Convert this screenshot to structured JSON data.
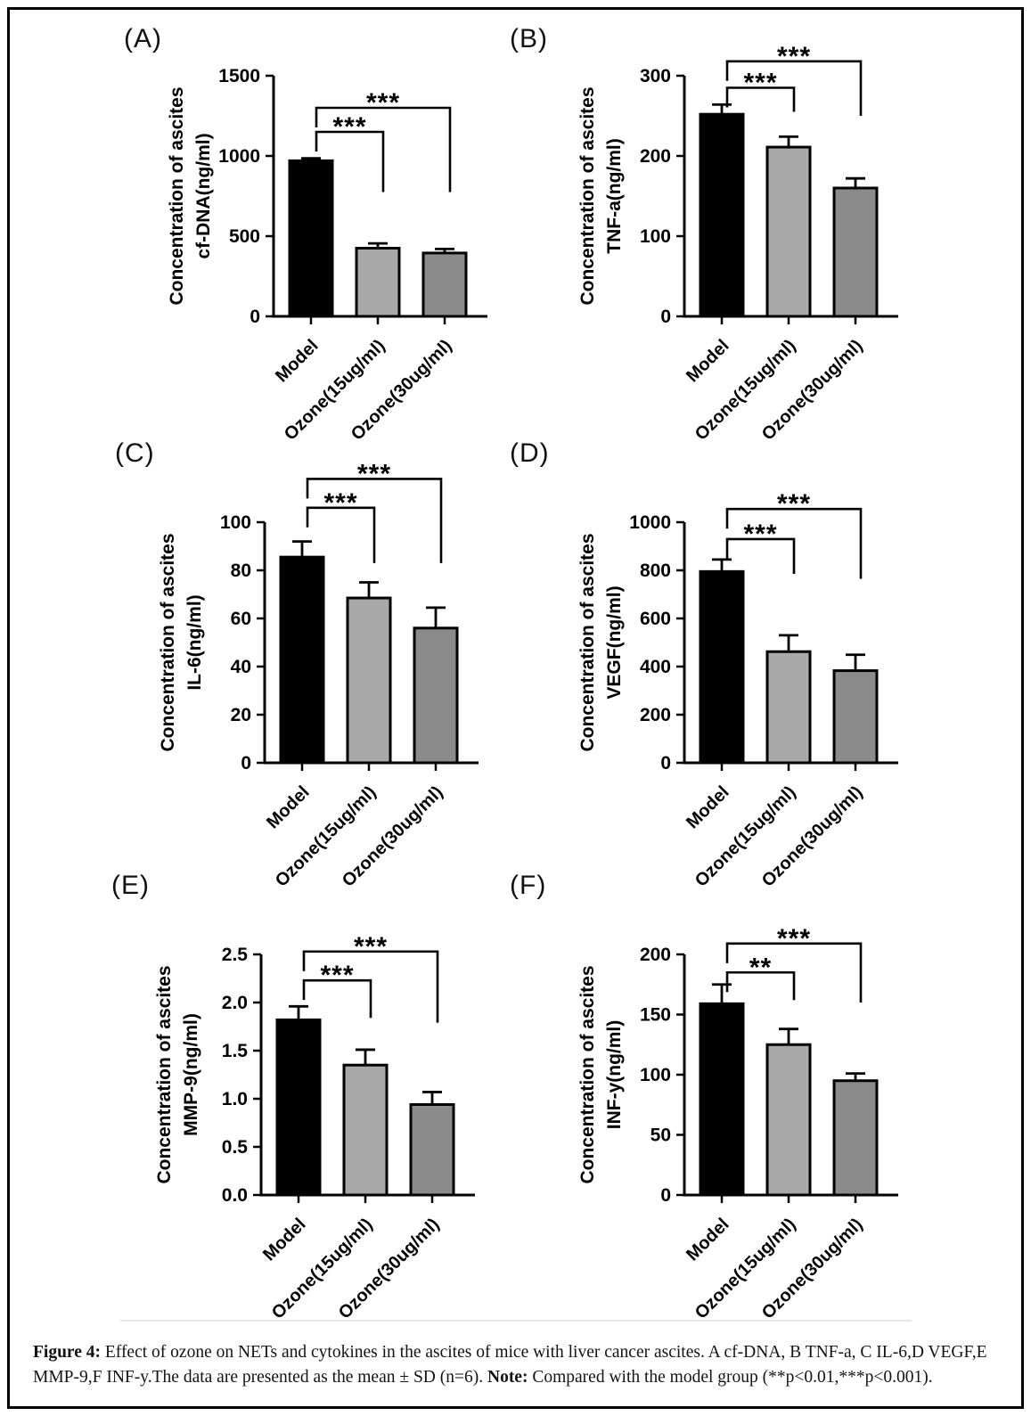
{
  "figure": {
    "caption": {
      "figure_label": "Figure 4:",
      "text_1": " Effect of ozone on NETs and cytokines in the ascites of mice with liver cancer ascites. A cf-DNA, B TNF-a, C IL-6,D VEGF,E MMP-9,F INF-y.The data are presented as the mean ± SD (n=6). ",
      "note_label": "Note:",
      "text_2": " Compared with the model group (**p<0.01,***p<0.001)."
    }
  },
  "chart_style": {
    "bar_colors": [
      "#000000",
      "#a9a9a9",
      "#8b8b8b"
    ],
    "bar_border_color": "#000000",
    "axis_color": "#000000",
    "error_bar_color": "#000000"
  },
  "chart_data": [
    {
      "panel": "(A)",
      "type": "bar",
      "title_lines": [
        "Concentration of  ascites",
        "cf-DNA(ng/ml)"
      ],
      "categories": [
        "Model",
        "Ozone(15ug/ml)",
        "Ozone(30ug/ml)"
      ],
      "values": [
        970,
        425,
        395
      ],
      "errors": [
        15,
        30,
        25
      ],
      "ylim": [
        0,
        1500
      ],
      "yticks": [
        0,
        500,
        1000,
        1500
      ],
      "ytick_labels": [
        "0",
        "500",
        "1000",
        "1500"
      ],
      "comparisons": [
        {
          "from": 0,
          "to": 1,
          "label": "***",
          "bracket_y": 1150,
          "drop_to": 775
        },
        {
          "from": 0,
          "to": 2,
          "label": "***",
          "bracket_y": 1300,
          "drop_to": 775
        }
      ]
    },
    {
      "panel": "(B)",
      "type": "bar",
      "title_lines": [
        "Concentration of ascites",
        "TNF-a(ng/ml)"
      ],
      "categories": [
        "Model",
        "Ozone(15ug/ml)",
        "Ozone(30ug/ml)"
      ],
      "values": [
        252,
        211,
        160
      ],
      "errors": [
        12,
        13,
        12
      ],
      "ylim": [
        0,
        300
      ],
      "yticks": [
        0,
        100,
        200,
        300
      ],
      "ytick_labels": [
        "0",
        "100",
        "200",
        "300"
      ],
      "comparisons": [
        {
          "from": 0,
          "to": 1,
          "label": "***",
          "bracket_y": 285,
          "drop_to": 255
        },
        {
          "from": 0,
          "to": 2,
          "label": "***",
          "bracket_y": 318,
          "drop_to": 250
        }
      ]
    },
    {
      "panel": "(C)",
      "type": "bar",
      "title_lines": [
        "Concentration of  ascites",
        "IL-6(ng/ml)"
      ],
      "categories": [
        "Model",
        "Ozone(15ug/ml)",
        "Ozone(30ug/ml)"
      ],
      "values": [
        85.5,
        68.5,
        56
      ],
      "errors": [
        6.5,
        6.5,
        8.5
      ],
      "ylim": [
        0,
        100
      ],
      "yticks": [
        0,
        20,
        40,
        60,
        80,
        100
      ],
      "ytick_labels": [
        "0",
        "20",
        "40",
        "60",
        "80",
        "100"
      ],
      "comparisons": [
        {
          "from": 0,
          "to": 1,
          "label": "***",
          "bracket_y": 106,
          "drop_to": 83
        },
        {
          "from": 0,
          "to": 2,
          "label": "***",
          "bracket_y": 118,
          "drop_to": 83
        }
      ]
    },
    {
      "panel": "(D)",
      "type": "bar",
      "title_lines": [
        "Concentration of ascites",
        "VEGF(ng/ml)"
      ],
      "categories": [
        "Model",
        "Ozone(15ug/ml)",
        "Ozone(30ug/ml)"
      ],
      "values": [
        795,
        462,
        383
      ],
      "errors": [
        50,
        68,
        66
      ],
      "ylim": [
        0,
        1000
      ],
      "yticks": [
        0,
        200,
        400,
        600,
        800,
        1000
      ],
      "ytick_labels": [
        "0",
        "200",
        "400",
        "600",
        "800",
        "1000"
      ],
      "comparisons": [
        {
          "from": 0,
          "to": 1,
          "label": "***",
          "bracket_y": 930,
          "drop_to": 785
        },
        {
          "from": 0,
          "to": 2,
          "label": "***",
          "bracket_y": 1055,
          "drop_to": 765
        }
      ]
    },
    {
      "panel": "(E)",
      "type": "bar",
      "title_lines": [
        "Concentration of ascites",
        "MMP-9(ng/ml)"
      ],
      "categories": [
        "Model",
        "Ozone(15ug/ml)",
        "Ozone(30ug/ml)"
      ],
      "values": [
        1.82,
        1.35,
        0.94
      ],
      "errors": [
        0.14,
        0.16,
        0.13
      ],
      "ylim": [
        0,
        2.5
      ],
      "yticks": [
        0,
        0.5,
        1.0,
        1.5,
        2.0,
        2.5
      ],
      "ytick_labels": [
        "0.0",
        "0.5",
        "1.0",
        "1.5",
        "2.0",
        "2.5"
      ],
      "comparisons": [
        {
          "from": 0,
          "to": 1,
          "label": "***",
          "bracket_y": 2.23,
          "drop_to": 1.84
        },
        {
          "from": 0,
          "to": 2,
          "label": "***",
          "bracket_y": 2.53,
          "drop_to": 1.79
        }
      ]
    },
    {
      "panel": "(F)",
      "type": "bar",
      "title_lines": [
        "Concentration of ascites",
        "INF-y(ng/ml)"
      ],
      "categories": [
        "Model",
        "Ozone(15ug/ml)",
        "Ozone(30ug/ml)"
      ],
      "values": [
        159,
        125,
        95
      ],
      "errors": [
        16,
        13,
        6
      ],
      "ylim": [
        0,
        200
      ],
      "yticks": [
        0,
        50,
        100,
        150,
        200
      ],
      "ytick_labels": [
        "0",
        "50",
        "100",
        "150",
        "200"
      ],
      "comparisons": [
        {
          "from": 0,
          "to": 1,
          "label": "**",
          "bracket_y": 185,
          "drop_to": 162
        },
        {
          "from": 0,
          "to": 2,
          "label": "***",
          "bracket_y": 209,
          "drop_to": 160
        }
      ]
    }
  ]
}
